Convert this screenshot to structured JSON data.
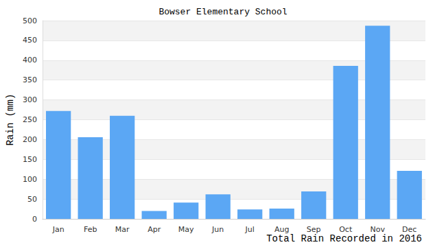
{
  "chart_data": {
    "type": "bar",
    "title": "Bowser Elementary School",
    "xlabel": "Total Rain Recorded in 2016",
    "ylabel": "Rain (mm)",
    "categories": [
      "Jan",
      "Feb",
      "Mar",
      "Apr",
      "May",
      "Jun",
      "Jul",
      "Aug",
      "Sep",
      "Oct",
      "Nov",
      "Dec"
    ],
    "values": [
      272,
      206,
      260,
      20,
      41,
      62,
      24,
      26,
      69,
      386,
      487,
      121
    ],
    "color": "#5ba7f4",
    "ylim": [
      0,
      500
    ],
    "yticks": [
      0,
      50,
      100,
      150,
      200,
      250,
      300,
      350,
      400,
      450,
      500
    ],
    "grid": true
  }
}
